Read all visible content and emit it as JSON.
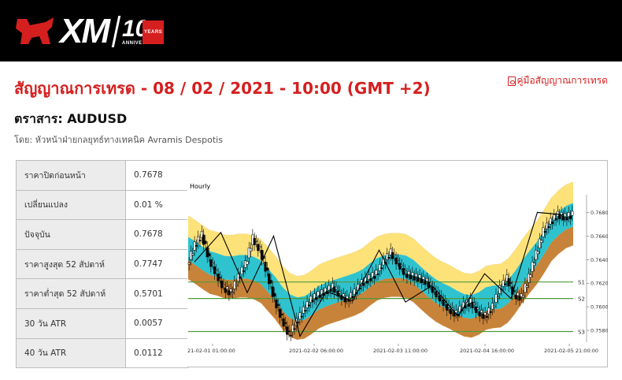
{
  "header": {
    "brand": "XM",
    "anniversary_number": "10",
    "anniversary_years": "YEARS",
    "anniversary_label": "ANNIVERSARY"
  },
  "headline": "สัญญาณการเทรด - 08 / 02 / 2021 - 10:00 (GMT +2)",
  "guide_link": "คู่มือสัญญาณการเทรด",
  "instrument": "ตราสาร: AUDUSD",
  "author": "โดย: หัวหน้าฝ่ายกลยุทธ์ทางเทคนิค Avramis Despotis",
  "stats": [
    {
      "label": "ราคาปิดก่อนหน้า",
      "value": "0.7678"
    },
    {
      "label": "เปลี่ยนแปลง",
      "value": "0.01 %"
    },
    {
      "label": "ปัจจุบัน",
      "value": "0.7678"
    },
    {
      "label": "ราคาสูงสุด 52 สัปดาห์",
      "value": "0.7747"
    },
    {
      "label": "ราคาต่ำสุด 52 สัปดาห์",
      "value": "0.5701"
    },
    {
      "label": "30 วัน ATR",
      "value": "0.0057"
    },
    {
      "label": "40 วัน ATR",
      "value": "0.0112"
    }
  ],
  "colors": {
    "accent": "#d51f1f",
    "band_outer": "#c8833a",
    "band_mid": "#fde27a",
    "band_inner": "#2fc3cf",
    "support_line": "#4f9a3a"
  },
  "chart_data": {
    "type": "line",
    "title": "Hourly",
    "y_ticks": [
      "0.7680",
      "0.7660",
      "0.7640",
      "0.7620",
      "0.7600",
      "0.7580"
    ],
    "ylim": [
      0.757,
      0.7695
    ],
    "x_ticks": [
      "21-02-01 01:00:00",
      "2021-02-02 06:00:00",
      "2021-02-03 11:00:00",
      "2021-02-04 16:00:00",
      "2021-02-05 21:00:00"
    ],
    "support_levels": [
      {
        "name": "S1",
        "value": 0.7621
      },
      {
        "name": "S2",
        "value": 0.7607
      },
      {
        "name": "S3",
        "value": 0.7579
      }
    ],
    "zigzag": [
      0.7638,
      0.7663,
      0.7612,
      0.766,
      0.7575,
      0.7613,
      0.7605,
      0.7648,
      0.7604,
      0.7618,
      0.7592,
      0.7628,
      0.7607,
      0.768,
      0.7678
    ],
    "price": [
      0.7636,
      0.7652,
      0.7661,
      0.764,
      0.7628,
      0.7616,
      0.7612,
      0.7625,
      0.7636,
      0.7658,
      0.7648,
      0.7628,
      0.7606,
      0.759,
      0.7576,
      0.7587,
      0.7597,
      0.7606,
      0.761,
      0.7613,
      0.7617,
      0.761,
      0.7606,
      0.7612,
      0.762,
      0.7624,
      0.7628,
      0.7638,
      0.7646,
      0.7637,
      0.7628,
      0.7626,
      0.7624,
      0.7621,
      0.7613,
      0.7606,
      0.7598,
      0.7594,
      0.7601,
      0.7604,
      0.7596,
      0.7592,
      0.76,
      0.7615,
      0.7624,
      0.761,
      0.7608,
      0.7625,
      0.7645,
      0.7664,
      0.7672,
      0.7678,
      0.7676,
      0.7678
    ]
  }
}
